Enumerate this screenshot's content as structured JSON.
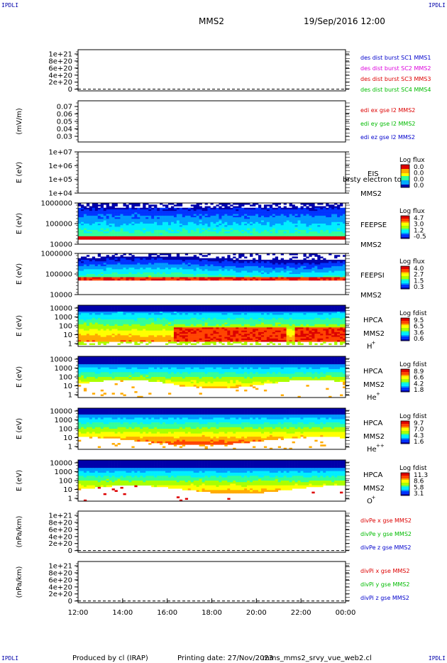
{
  "corner_label": "IPDLI",
  "header": {
    "spacecraft": "MMS2",
    "datetime": "19/Sep/2016 12:00"
  },
  "footer": {
    "produced_by": "Produced by cl (IRAP)",
    "printing": "Printing date: 27/Nov/2023",
    "filename": "mms_mms2_srvy_vue_web2.cl"
  },
  "colors": {
    "red": "#dd0000",
    "magenta": "#dd00dd",
    "green": "#00bb00",
    "blue": "#0000cc",
    "frame": "#000000"
  },
  "chart_data": {
    "type": "multi-panel time series and spectrograms",
    "xaxis": {
      "tick_labels": [
        "12:00",
        "14:00",
        "16:00",
        "18:00",
        "20:00",
        "22:00",
        "00:00"
      ],
      "range_hours": [
        12,
        24
      ]
    },
    "panels": [
      {
        "id": "p1",
        "kind": "line",
        "ylabel": "",
        "yticks": [
          "1e+21",
          "8e+20",
          "6e+20",
          "4e+20",
          "2e+20",
          "0"
        ],
        "ylim": [
          0,
          1.1e+21
        ],
        "dashed_zero": true,
        "legend": [
          {
            "text": "des dist burst SC1 MMS1",
            "color": "#0000cc"
          },
          {
            "text": "des dist burst SC2 MMS2",
            "color": "#dd00dd"
          },
          {
            "text": "des dist burst SC3 MMS3",
            "color": "#dd0000"
          },
          {
            "text": "des dist burst SC4 MMS4",
            "color": "#00bb00"
          }
        ]
      },
      {
        "id": "p2",
        "kind": "line",
        "ylabel": "(mV/m)",
        "yticks": [
          "0.07",
          "0.06",
          "0.05",
          "0.04",
          "0.03"
        ],
        "ylim": [
          0.025,
          0.075
        ],
        "legend": [
          {
            "text": "edi ex gse l2 MMS2",
            "color": "#dd0000"
          },
          {
            "text": "edi ey gse l2 MMS2",
            "color": "#00bb00"
          },
          {
            "text": "edi ez gse l2 MMS2",
            "color": "#0000cc"
          }
        ]
      },
      {
        "id": "p3",
        "kind": "spectrogram",
        "ylabel": "E (eV)",
        "yticks": [
          "1e+07",
          "1e+06",
          "1e+05",
          "1e+04"
        ],
        "log_decades": [
          7,
          4
        ],
        "instrument": [
          "EIS",
          "MMS2"
        ],
        "overlay_text": "brsty electron to",
        "colorbar_title": "Log flux",
        "colorbar_ticks": [
          "0.0",
          "0.0",
          "0.0",
          "0.0"
        ],
        "filled": false
      },
      {
        "id": "p4",
        "kind": "spectrogram",
        "ylabel": "E (eV)",
        "yticks": [
          "1000000",
          "100000",
          "10000"
        ],
        "log_decades": [
          6,
          4
        ],
        "instrument": [
          "FEEPSE",
          "MMS2"
        ],
        "colorbar_title": "Log flux",
        "colorbar_ticks": [
          "4.7",
          "3.0",
          "1.2",
          "-0.5"
        ],
        "filled": true,
        "pattern": "feepse"
      },
      {
        "id": "p5",
        "kind": "spectrogram",
        "ylabel": "E (eV)",
        "yticks": [
          "1000000",
          "100000",
          "10000"
        ],
        "log_decades": [
          6,
          4
        ],
        "instrument": [
          "FEEPSI",
          "MMS2"
        ],
        "colorbar_title": "Log flux",
        "colorbar_ticks": [
          "4.0",
          "2.7",
          "1.5",
          "0.3"
        ],
        "filled": true,
        "pattern": "feepsi"
      },
      {
        "id": "p6",
        "kind": "spectrogram",
        "ylabel": "E (eV)",
        "yticks": [
          "10000",
          "1000",
          "100",
          "10",
          "1"
        ],
        "log_decades": [
          4.5,
          0
        ],
        "instrument": [
          "HPCA",
          "MMS2"
        ],
        "species": "H",
        "species_charge": "+",
        "colorbar_title": "Log fdist",
        "colorbar_ticks": [
          "9.5",
          "6.5",
          "3.6",
          "0.6"
        ],
        "filled": true,
        "pattern": "hplus"
      },
      {
        "id": "p7",
        "kind": "spectrogram",
        "ylabel": "E (eV)",
        "yticks": [
          "10000",
          "1000",
          "100",
          "10",
          "1"
        ],
        "log_decades": [
          4.5,
          0
        ],
        "instrument": [
          "HPCA",
          "MMS2"
        ],
        "species": "He",
        "species_charge": "+",
        "colorbar_title": "Log fdist",
        "colorbar_ticks": [
          "8.9",
          "6.6",
          "4.2",
          "1.8"
        ],
        "filled": true,
        "pattern": "heplus"
      },
      {
        "id": "p8",
        "kind": "spectrogram",
        "ylabel": "E (eV)",
        "yticks": [
          "10000",
          "1000",
          "100",
          "10",
          "1"
        ],
        "log_decades": [
          4.5,
          0
        ],
        "instrument": [
          "HPCA",
          "MMS2"
        ],
        "species": "He",
        "species_charge": "++",
        "colorbar_title": "Log fdist",
        "colorbar_ticks": [
          "9.7",
          "7.0",
          "4.3",
          "1.6"
        ],
        "filled": true,
        "pattern": "hepp"
      },
      {
        "id": "p9",
        "kind": "spectrogram",
        "ylabel": "E (eV)",
        "yticks": [
          "10000",
          "1000",
          "100",
          "10",
          "1"
        ],
        "log_decades": [
          4.5,
          0
        ],
        "instrument": [
          "HPCA",
          "MMS2"
        ],
        "species": "O",
        "species_charge": "+",
        "colorbar_title": "Log fdist",
        "colorbar_ticks": [
          "11.3",
          "8.6",
          "5.8",
          "3.1"
        ],
        "filled": true,
        "pattern": "oplus"
      },
      {
        "id": "p10",
        "kind": "line",
        "ylabel": "(nPa/km)",
        "yticks": [
          "1e+21",
          "8e+20",
          "6e+20",
          "4e+20",
          "2e+20",
          "0"
        ],
        "ylim": [
          0,
          1.1e+21
        ],
        "dashed_zero": true,
        "legend": [
          {
            "text": "divPe x gse MMS2",
            "color": "#dd0000"
          },
          {
            "text": "divPe y gse MMS2",
            "color": "#00bb00"
          },
          {
            "text": "divPe z gse MMS2",
            "color": "#0000cc"
          }
        ]
      },
      {
        "id": "p11",
        "kind": "line",
        "ylabel": "(nPa/km)",
        "yticks": [
          "1e+21",
          "8e+20",
          "6e+20",
          "4e+20",
          "2e+20",
          "0"
        ],
        "ylim": [
          0,
          1.1e+21
        ],
        "dashed_zero": true,
        "legend": [
          {
            "text": "divPi x gse MMS2",
            "color": "#dd0000"
          },
          {
            "text": "divPi y gse MMS2",
            "color": "#00bb00"
          },
          {
            "text": "divPi z gse MMS2",
            "color": "#0000cc"
          }
        ]
      }
    ]
  }
}
